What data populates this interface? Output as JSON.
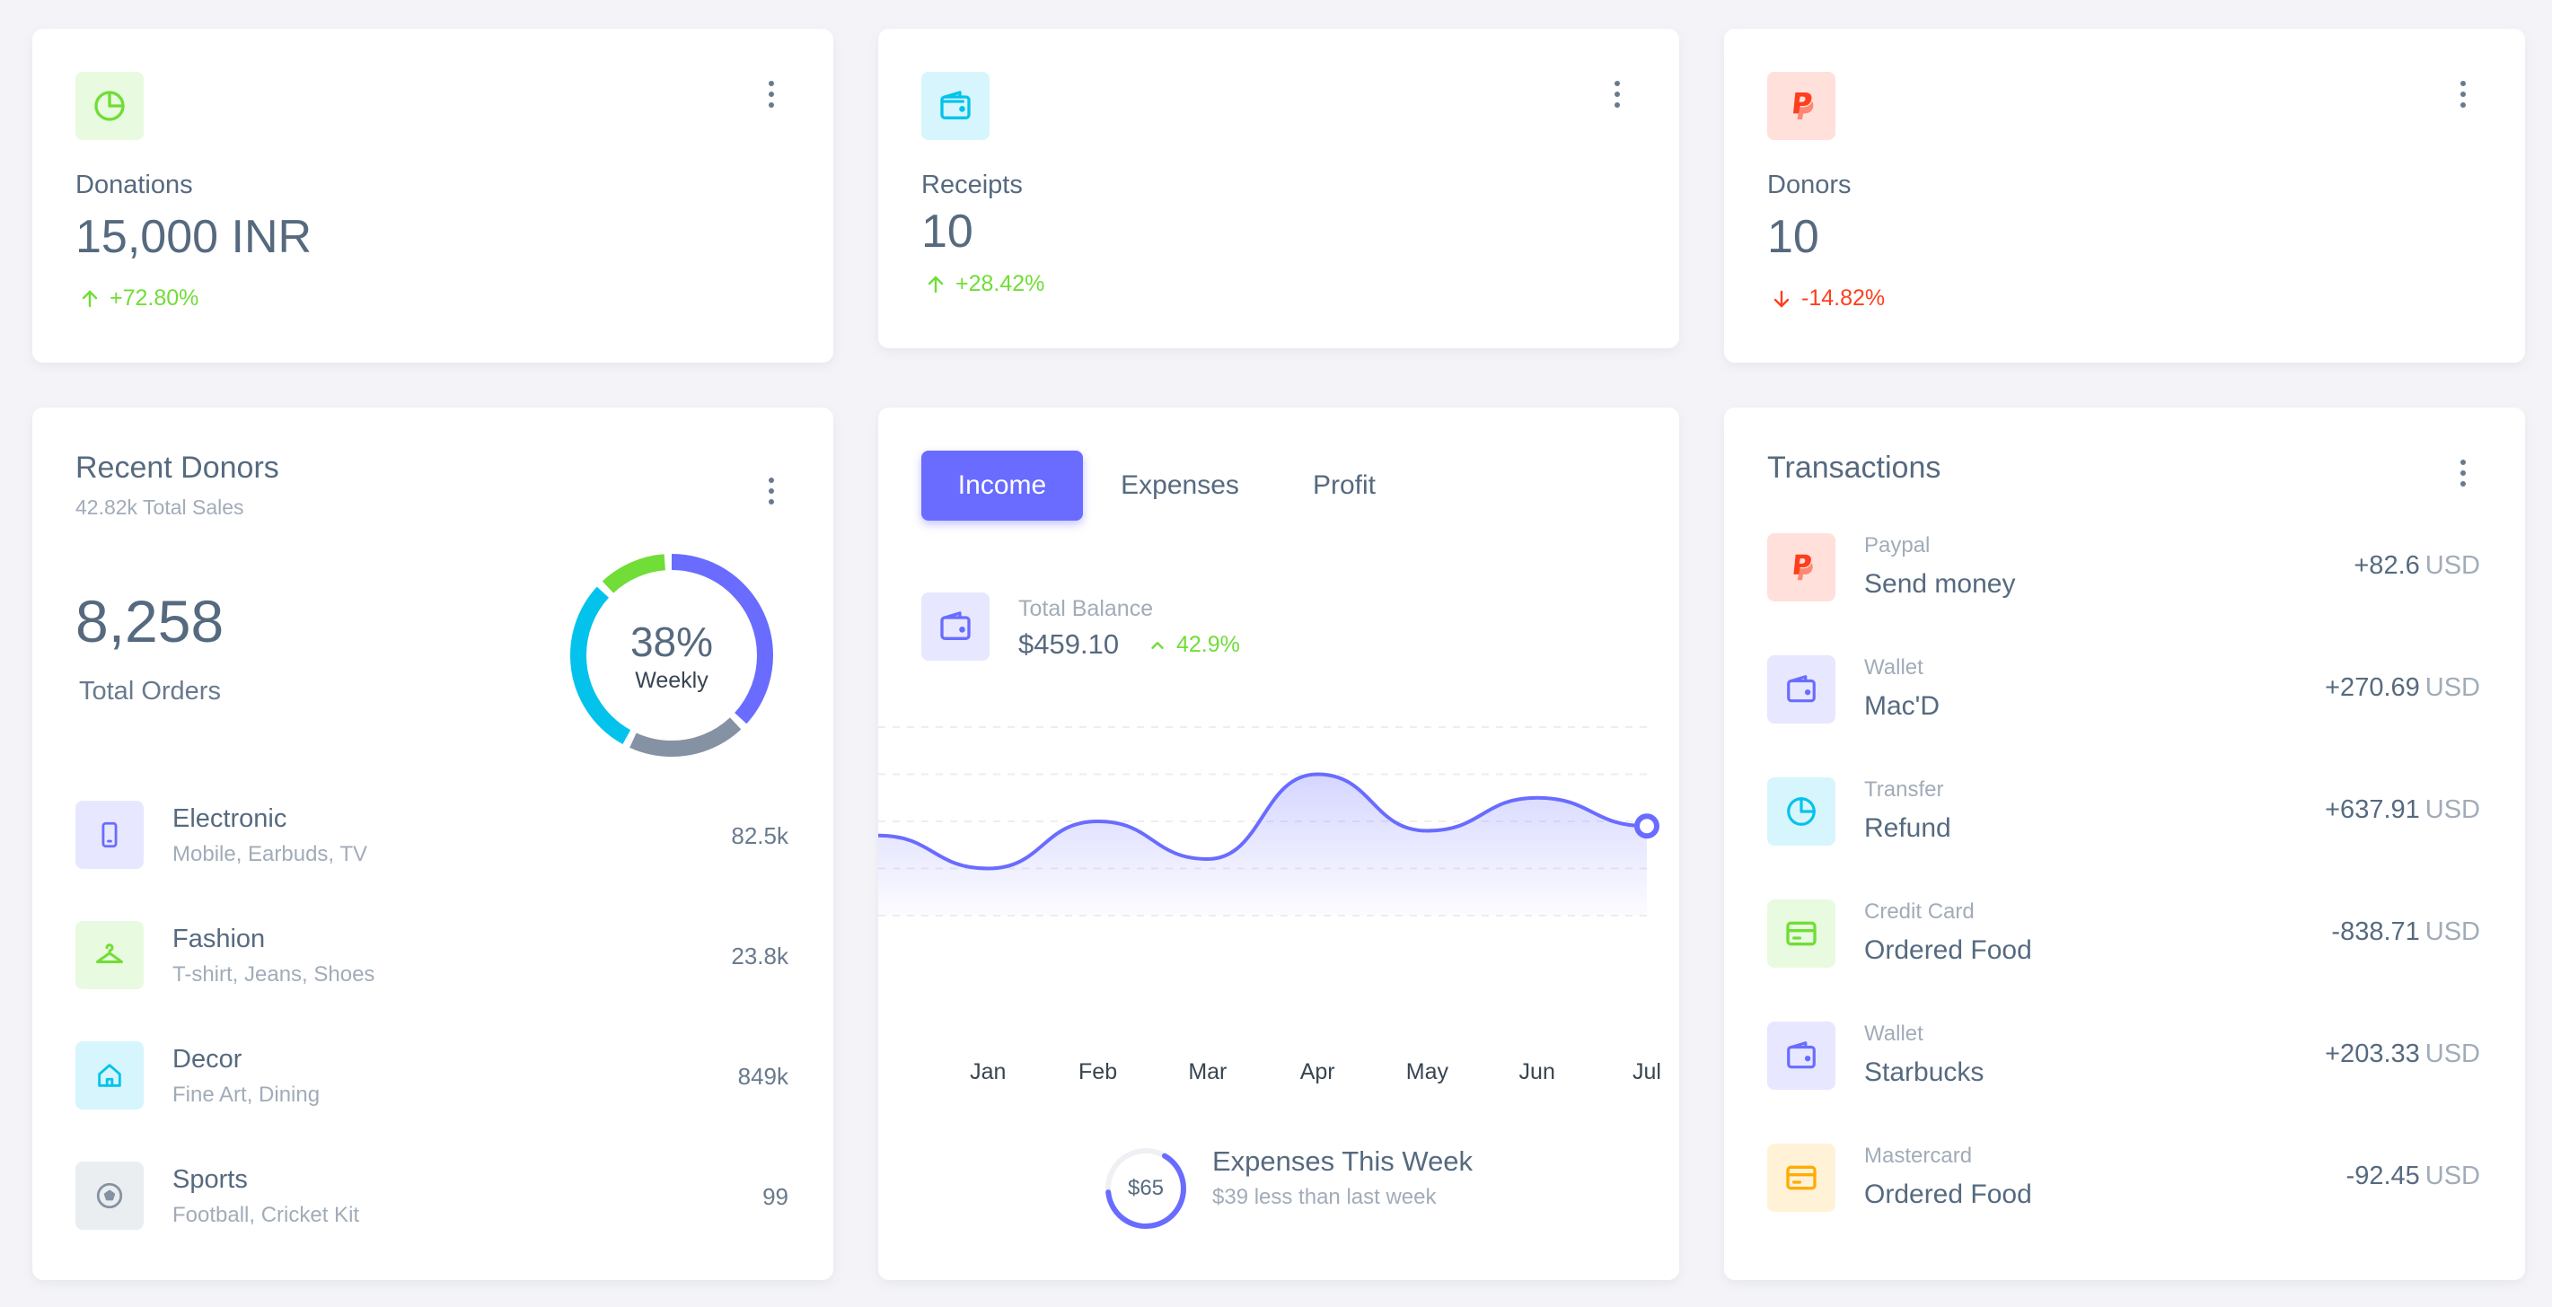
{
  "colors": {
    "primary": "#696cff",
    "success": "#71dd37",
    "danger": "#ff3e1d",
    "info": "#03c3ec",
    "warning": "#ffab00",
    "secondary": "#8592a3"
  },
  "stats": [
    {
      "label": "Donations",
      "value": "15,000 INR",
      "trend": "+72.80%",
      "direction": "up",
      "icon": "pie-chart-icon"
    },
    {
      "label": "Receipts",
      "value": "10",
      "trend": "+28.42%",
      "direction": "up",
      "icon": "wallet-icon"
    },
    {
      "label": "Donors",
      "value": "10",
      "trend": "-14.82%",
      "direction": "down",
      "icon": "paypal-icon"
    }
  ],
  "recent_donors": {
    "title": "Recent Donors",
    "subtitle": "42.82k Total Sales",
    "total_orders_value": "8,258",
    "total_orders_label": "Total Orders",
    "donut": {
      "percent_label": "38%",
      "label": "Weekly",
      "segments": [
        38,
        20,
        30,
        12
      ]
    },
    "categories": [
      {
        "name": "Electronic",
        "desc": "Mobile, Earbuds, TV",
        "value": "82.5k",
        "icon": "mobile-icon"
      },
      {
        "name": "Fashion",
        "desc": "T-shirt, Jeans, Shoes",
        "value": "23.8k",
        "icon": "hanger-icon"
      },
      {
        "name": "Decor",
        "desc": "Fine Art, Dining",
        "value": "849k",
        "icon": "home-icon"
      },
      {
        "name": "Sports",
        "desc": "Football, Cricket Kit",
        "value": "99",
        "icon": "football-icon"
      }
    ]
  },
  "income_card": {
    "tabs": [
      {
        "label": "Income",
        "active": true
      },
      {
        "label": "Expenses",
        "active": false
      },
      {
        "label": "Profit",
        "active": false
      }
    ],
    "total_balance_label": "Total Balance",
    "total_balance_value": "$459.10",
    "total_balance_trend": "42.9%",
    "expenses_value": "$65",
    "expenses_progress": 0.65,
    "expenses_title": "Expenses This Week",
    "expenses_sub": "$39 less than last week"
  },
  "chart_data": {
    "type": "area",
    "categories": [
      "",
      "Jan",
      "Feb",
      "Mar",
      "Apr",
      "May",
      "Jun",
      "Jul"
    ],
    "series": [
      {
        "values": [
          24,
          10,
          30,
          14,
          50,
          26,
          40,
          28
        ]
      }
    ],
    "ylim": [
      -10,
      70
    ],
    "grid": true
  },
  "transactions": {
    "title": "Transactions",
    "items": [
      {
        "type": "Paypal",
        "name": "Send money",
        "amount": "+82.6",
        "currency": "USD",
        "icon": "paypal-icon"
      },
      {
        "type": "Wallet",
        "name": "Mac'D",
        "amount": "+270.69",
        "currency": "USD",
        "icon": "wallet-icon"
      },
      {
        "type": "Transfer",
        "name": "Refund",
        "amount": "+637.91",
        "currency": "USD",
        "icon": "pie-chart-icon"
      },
      {
        "type": "Credit Card",
        "name": "Ordered Food",
        "amount": "-838.71",
        "currency": "USD",
        "icon": "credit-card-icon"
      },
      {
        "type": "Wallet",
        "name": "Starbucks",
        "amount": "+203.33",
        "currency": "USD",
        "icon": "wallet-icon"
      },
      {
        "type": "Mastercard",
        "name": "Ordered Food",
        "amount": "-92.45",
        "currency": "USD",
        "icon": "credit-card-icon"
      }
    ]
  }
}
